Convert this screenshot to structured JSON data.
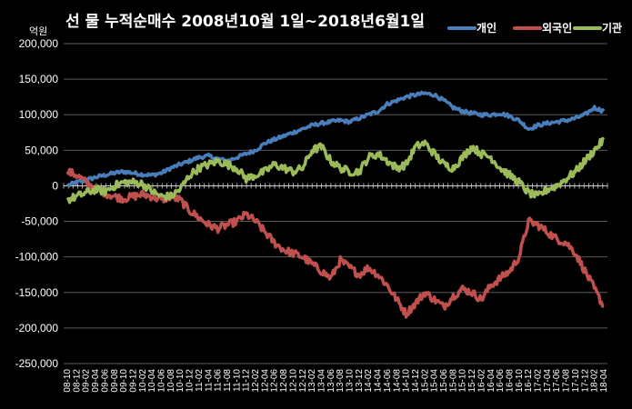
{
  "chart_data": {
    "type": "line",
    "title": "선 물 누적순매수 2008년10월 1일~2018년6월1일",
    "unit": "억원",
    "ylim": [
      -250000,
      200000
    ],
    "yticks": [
      -250000,
      -200000,
      -150000,
      -100000,
      -50000,
      0,
      50000,
      100000,
      150000,
      200000
    ],
    "ytick_labels": [
      "-250,000",
      "-200,000",
      "-150,000",
      "-100,000",
      "-50,000",
      "0",
      "50,000",
      "100,000",
      "150,000",
      "200,000"
    ],
    "grid": true,
    "legend_position": "top-right",
    "x": [
      "08-10",
      "08-12",
      "09-02",
      "09-04",
      "09-06",
      "09-08",
      "09-10",
      "09-12",
      "10-02",
      "10-04",
      "10-06",
      "10-08",
      "10-10",
      "10-12",
      "11-02",
      "11-04",
      "11-06",
      "11-08",
      "11-10",
      "11-12",
      "12-02",
      "12-04",
      "12-06",
      "12-08",
      "12-10",
      "12-12",
      "13-02",
      "13-04",
      "13-06",
      "13-08",
      "13-10",
      "13-12",
      "14-02",
      "14-04",
      "14-06",
      "14-08",
      "14-10",
      "14-12",
      "15-02",
      "15-04",
      "15-06",
      "15-08",
      "15-10",
      "15-12",
      "16-02",
      "16-04",
      "16-06",
      "16-08",
      "16-10",
      "16-12",
      "17-02",
      "17-04",
      "17-06",
      "17-08",
      "17-10",
      "17-12",
      "18-02",
      "18-04"
    ],
    "series": [
      {
        "name": "개인",
        "color": "#4a7ebb",
        "values": [
          0,
          5000,
          8000,
          12000,
          15000,
          18000,
          20000,
          18000,
          16000,
          15000,
          18000,
          25000,
          30000,
          35000,
          40000,
          42000,
          38000,
          35000,
          40000,
          45000,
          50000,
          60000,
          65000,
          70000,
          75000,
          80000,
          85000,
          88000,
          90000,
          92000,
          90000,
          95000,
          100000,
          105000,
          115000,
          120000,
          125000,
          128000,
          130000,
          128000,
          120000,
          110000,
          105000,
          102000,
          100000,
          100000,
          102000,
          98000,
          92000,
          80000,
          85000,
          88000,
          90000,
          92000,
          95000,
          100000,
          110000,
          105000
        ]
      },
      {
        "name": "외국인",
        "color": "#c0504d",
        "values": [
          20000,
          15000,
          5000,
          -5000,
          -10000,
          -15000,
          -18000,
          -15000,
          -12000,
          -15000,
          -20000,
          -15000,
          -20000,
          -35000,
          -45000,
          -55000,
          -60000,
          -55000,
          -50000,
          -40000,
          -50000,
          -65000,
          -80000,
          -90000,
          -95000,
          -100000,
          -110000,
          -120000,
          -130000,
          -105000,
          -115000,
          -125000,
          -115000,
          -125000,
          -140000,
          -160000,
          -180000,
          -165000,
          -150000,
          -160000,
          -170000,
          -155000,
          -145000,
          -150000,
          -160000,
          -140000,
          -130000,
          -120000,
          -100000,
          -50000,
          -55000,
          -65000,
          -75000,
          -80000,
          -95000,
          -120000,
          -145000,
          -170000
        ]
      },
      {
        "name": "기관",
        "color": "#9bbb59",
        "values": [
          -20000,
          -15000,
          -10000,
          -5000,
          -8000,
          0,
          5000,
          5000,
          3000,
          -8000,
          -15000,
          -15000,
          -5000,
          15000,
          25000,
          30000,
          35000,
          30000,
          25000,
          10000,
          15000,
          20000,
          30000,
          25000,
          20000,
          25000,
          50000,
          55000,
          35000,
          25000,
          20000,
          20000,
          40000,
          45000,
          35000,
          25000,
          30000,
          55000,
          60000,
          45000,
          30000,
          25000,
          40000,
          55000,
          45000,
          40000,
          25000,
          15000,
          5000,
          -10000,
          -15000,
          -5000,
          0,
          10000,
          20000,
          35000,
          50000,
          65000
        ]
      }
    ]
  }
}
